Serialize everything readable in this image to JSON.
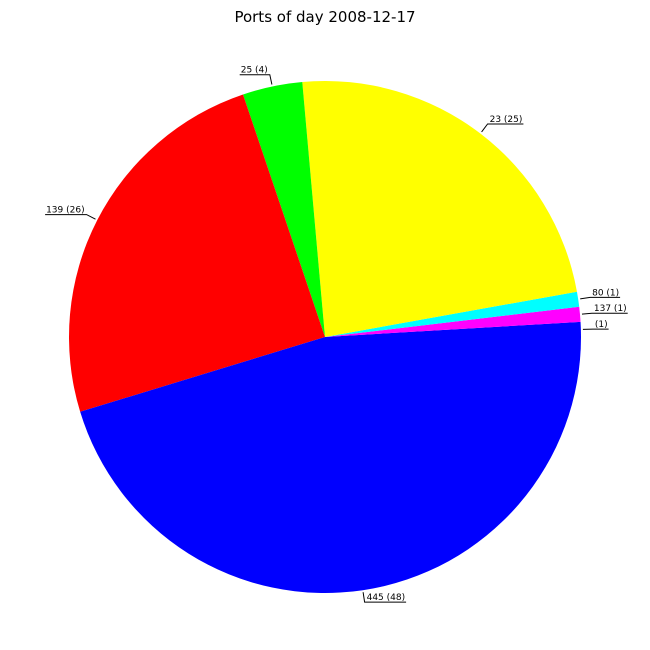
{
  "chart_data": {
    "type": "pie",
    "title": "Ports of day 2008-12-17",
    "start_angle_deg": 0,
    "direction": "counterclockwise",
    "slices": [
      {
        "label": "(1)",
        "value": 1,
        "color": "#0000ff"
      },
      {
        "label": "137 (1)",
        "value": 1,
        "color": "#ff00ff"
      },
      {
        "label": "80 (1)",
        "value": 1,
        "color": "#00ffff"
      },
      {
        "label": "23 (25)",
        "value": 25,
        "color": "#ffff00"
      },
      {
        "label": "25 (4)",
        "value": 4,
        "color": "#00ff00"
      },
      {
        "label": "139 (26)",
        "value": 26,
        "color": "#ff0000"
      },
      {
        "label": "445 (48)",
        "value": 48,
        "color": "#0000ff"
      }
    ]
  }
}
